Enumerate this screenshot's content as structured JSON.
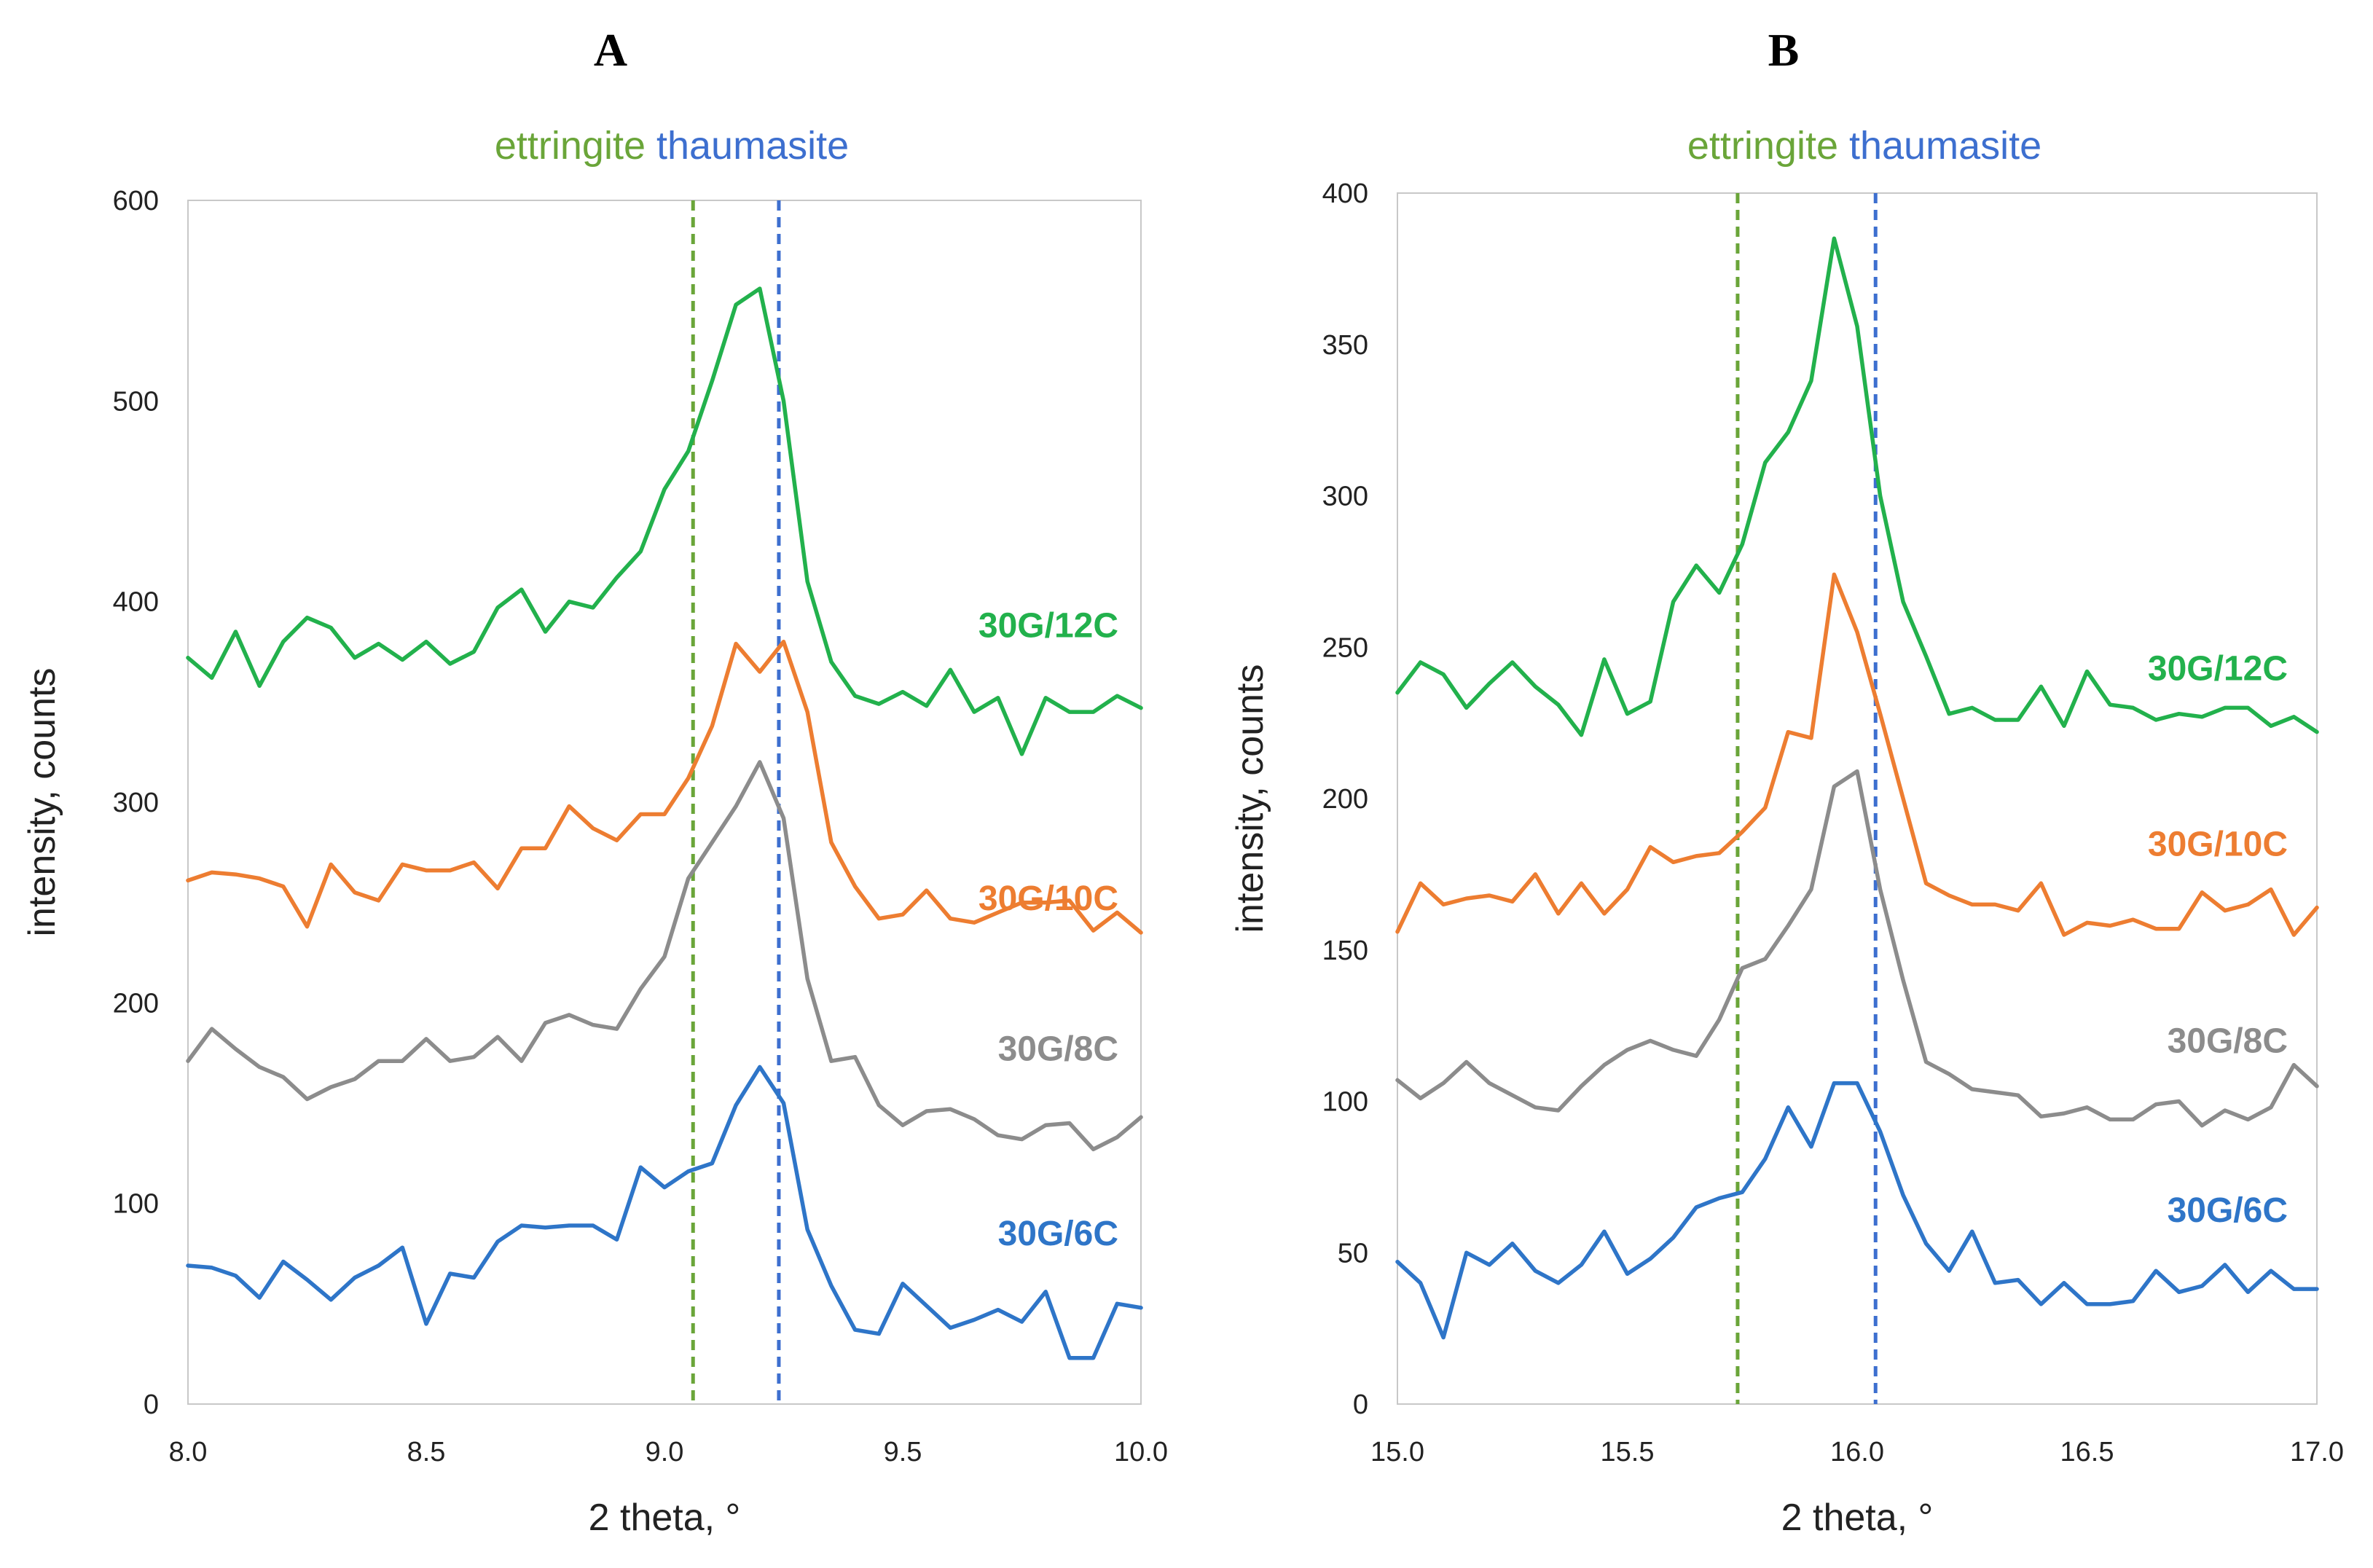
{
  "chart_data": [
    {
      "type": "line",
      "panel": "A",
      "xlabel": "2 theta, °",
      "ylabel": "intensity, counts",
      "xlim": [
        8.0,
        10.0
      ],
      "ylim": [
        0,
        600
      ],
      "xticks": [
        "8.0",
        "8.5",
        "9.0",
        "9.5",
        "10.0"
      ],
      "yticks": [
        "0",
        "100",
        "200",
        "300",
        "400",
        "500",
        "600"
      ],
      "xtick_values": [
        8.0,
        8.5,
        9.0,
        9.5,
        10.0
      ],
      "ytick_values": [
        0,
        100,
        200,
        300,
        400,
        500,
        600
      ],
      "reference_lines": [
        {
          "name": "ettringite",
          "x": 9.06,
          "color": "#6aa539"
        },
        {
          "name": "thaumasite",
          "x": 9.24,
          "color": "#3d6fcf"
        }
      ],
      "x": [
        8.0,
        8.05,
        8.1,
        8.15,
        8.2,
        8.25,
        8.3,
        8.35,
        8.4,
        8.45,
        8.5,
        8.55,
        8.6,
        8.65,
        8.7,
        8.75,
        8.8,
        8.85,
        8.9,
        8.95,
        9.0,
        9.05,
        9.1,
        9.15,
        9.2,
        9.25,
        9.3,
        9.35,
        9.4,
        9.45,
        9.5,
        9.55,
        9.6,
        9.65,
        9.7,
        9.75,
        9.8,
        9.85,
        9.9,
        9.95,
        10.0
      ],
      "series": [
        {
          "name": "30G/12C",
          "color": "#22b14c",
          "values": [
            372,
            362,
            385,
            358,
            380,
            392,
            387,
            372,
            379,
            371,
            380,
            369,
            375,
            397,
            406,
            385,
            400,
            397,
            412,
            425,
            456,
            475,
            510,
            548,
            556,
            500,
            410,
            370,
            353,
            349,
            355,
            348,
            366,
            345,
            352,
            324,
            352,
            345,
            345,
            353,
            347
          ]
        },
        {
          "name": "30G/10C",
          "color": "#ed7d31",
          "values": [
            261,
            265,
            264,
            262,
            258,
            238,
            269,
            255,
            251,
            269,
            266,
            266,
            270,
            257,
            277,
            277,
            298,
            287,
            281,
            294,
            294,
            312,
            338,
            379,
            365,
            380,
            345,
            280,
            258,
            242,
            244,
            256,
            242,
            240,
            245,
            250,
            250,
            251,
            236,
            245,
            235
          ]
        },
        {
          "name": "30G/8C",
          "color": "#8c8c8c",
          "values": [
            171,
            187,
            177,
            168,
            163,
            152,
            158,
            162,
            171,
            171,
            182,
            171,
            173,
            183,
            171,
            190,
            194,
            189,
            187,
            207,
            223,
            262,
            280,
            298,
            320,
            292,
            212,
            171,
            173,
            149,
            139,
            146,
            147,
            142,
            134,
            132,
            139,
            140,
            127,
            133,
            143
          ]
        },
        {
          "name": "30G/6C",
          "color": "#2e75c8",
          "values": [
            69,
            68,
            64,
            53,
            71,
            62,
            52,
            63,
            69,
            78,
            40,
            65,
            63,
            81,
            89,
            88,
            89,
            89,
            82,
            118,
            108,
            116,
            120,
            149,
            168,
            150,
            87,
            59,
            37,
            35,
            60,
            49,
            38,
            42,
            47,
            41,
            56,
            23,
            23,
            50,
            48
          ]
        }
      ]
    },
    {
      "type": "line",
      "panel": "B",
      "xlabel": "2 theta, °",
      "ylabel": "intensity, counts",
      "xlim": [
        15.0,
        17.0
      ],
      "ylim": [
        0,
        400
      ],
      "xticks": [
        "15.0",
        "15.5",
        "16.0",
        "16.5",
        "17.0"
      ],
      "yticks": [
        "0",
        "50",
        "100",
        "150",
        "200",
        "250",
        "300",
        "350",
        "400"
      ],
      "xtick_values": [
        15.0,
        15.5,
        16.0,
        16.5,
        17.0
      ],
      "ytick_values": [
        0,
        50,
        100,
        150,
        200,
        250,
        300,
        350,
        400
      ],
      "reference_lines": [
        {
          "name": "ettringite",
          "x": 15.74,
          "color": "#6aa539"
        },
        {
          "name": "thaumasite",
          "x": 16.04,
          "color": "#3d6fcf"
        }
      ],
      "x": [
        15.0,
        15.05,
        15.1,
        15.15,
        15.2,
        15.25,
        15.3,
        15.35,
        15.4,
        15.45,
        15.5,
        15.55,
        15.6,
        15.65,
        15.7,
        15.75,
        15.8,
        15.85,
        15.9,
        15.95,
        16.0,
        16.05,
        16.1,
        16.15,
        16.2,
        16.25,
        16.3,
        16.35,
        16.4,
        16.45,
        16.5,
        16.55,
        16.6,
        16.65,
        16.7,
        16.75,
        16.8,
        16.85,
        16.9,
        16.95,
        17.0
      ],
      "series": [
        {
          "name": "30G/12C",
          "color": "#22b14c",
          "values": [
            235,
            245,
            241,
            230,
            238,
            245,
            237,
            231,
            221,
            246,
            228,
            232,
            265,
            277,
            268,
            284,
            311,
            321,
            338,
            385,
            356,
            300,
            265,
            247,
            228,
            230,
            226,
            226,
            237,
            224,
            242,
            231,
            230,
            226,
            228,
            227,
            230,
            230,
            224,
            227,
            222
          ]
        },
        {
          "name": "30G/10C",
          "color": "#ed7d31",
          "values": [
            156,
            172,
            165,
            167,
            168,
            166,
            175,
            162,
            172,
            162,
            170,
            184,
            179,
            181,
            182,
            189,
            197,
            222,
            220,
            274,
            255,
            228,
            200,
            172,
            168,
            165,
            165,
            163,
            172,
            155,
            159,
            158,
            160,
            157,
            157,
            169,
            163,
            165,
            170,
            155,
            164
          ]
        },
        {
          "name": "30G/8C",
          "color": "#8c8c8c",
          "values": [
            107,
            101,
            106,
            113,
            106,
            102,
            98,
            97,
            105,
            112,
            117,
            120,
            117,
            115,
            127,
            144,
            147,
            158,
            170,
            204,
            209,
            170,
            140,
            113,
            109,
            104,
            103,
            102,
            95,
            96,
            98,
            94,
            94,
            99,
            100,
            92,
            97,
            94,
            98,
            112,
            105
          ]
        },
        {
          "name": "30G/6C",
          "color": "#2e75c8",
          "values": [
            47,
            40,
            22,
            50,
            46,
            53,
            44,
            40,
            46,
            57,
            43,
            48,
            55,
            65,
            68,
            70,
            81,
            98,
            85,
            106,
            106,
            90,
            69,
            53,
            44,
            57,
            40,
            41,
            33,
            40,
            33,
            33,
            34,
            44,
            37,
            39,
            46,
            37,
            44,
            38,
            38
          ]
        }
      ]
    }
  ]
}
